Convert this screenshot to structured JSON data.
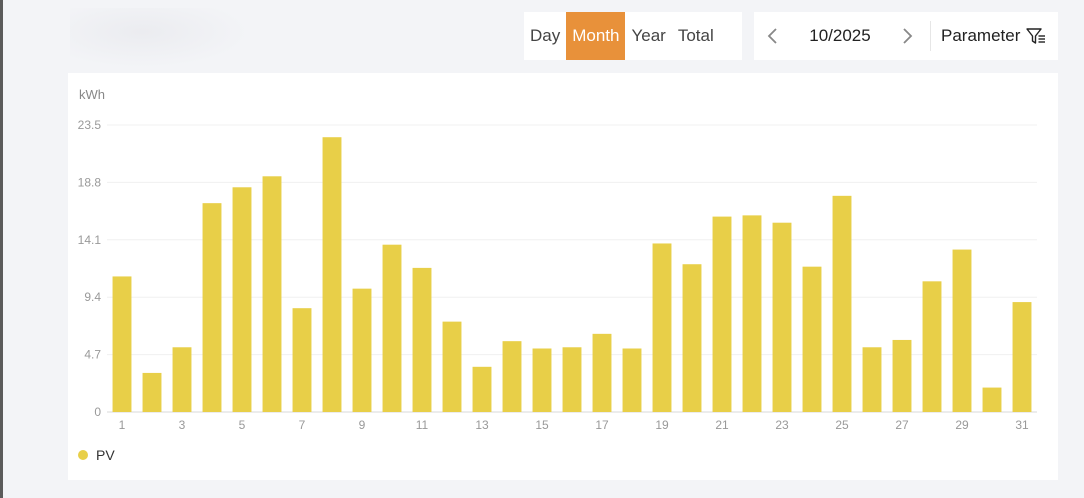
{
  "tabs": {
    "items": [
      {
        "label": "Day",
        "active": false
      },
      {
        "label": "Month",
        "active": true
      },
      {
        "label": "Year",
        "active": false
      },
      {
        "label": "Total",
        "active": false
      }
    ]
  },
  "date_nav": {
    "current": "10/2025",
    "prev_icon": "chevron-left-icon",
    "next_icon": "chevron-right-icon"
  },
  "parameter": {
    "label": "Parameter",
    "icon": "filter-icon"
  },
  "colors": {
    "accent": "#e8913a",
    "bar": "#e8cf48"
  },
  "chart_data": {
    "type": "bar",
    "ylabel": "kWh",
    "ylim": [
      0,
      23.5
    ],
    "yticks": [
      "0",
      "4.7",
      "9.4",
      "14.1",
      "18.8",
      "23.5"
    ],
    "categories": [
      "1",
      "2",
      "3",
      "4",
      "5",
      "6",
      "7",
      "8",
      "9",
      "10",
      "11",
      "12",
      "13",
      "14",
      "15",
      "16",
      "17",
      "18",
      "19",
      "20",
      "21",
      "22",
      "23",
      "24",
      "25",
      "26",
      "27",
      "28",
      "29",
      "30",
      "31"
    ],
    "xtick_labels": [
      "1",
      "3",
      "5",
      "7",
      "9",
      "11",
      "13",
      "15",
      "17",
      "19",
      "21",
      "23",
      "25",
      "27",
      "29",
      "31"
    ],
    "series": [
      {
        "name": "PV",
        "color": "#e8cf48",
        "values": [
          11.1,
          3.2,
          5.3,
          17.1,
          18.4,
          19.3,
          8.5,
          22.5,
          10.1,
          13.7,
          11.8,
          7.4,
          3.7,
          5.8,
          5.2,
          5.3,
          6.4,
          5.2,
          13.8,
          12.1,
          16.0,
          16.1,
          15.5,
          11.9,
          17.7,
          5.3,
          5.9,
          10.7,
          13.3,
          2.0,
          9.0
        ]
      }
    ],
    "grid": true,
    "legend": "bottom-left"
  }
}
